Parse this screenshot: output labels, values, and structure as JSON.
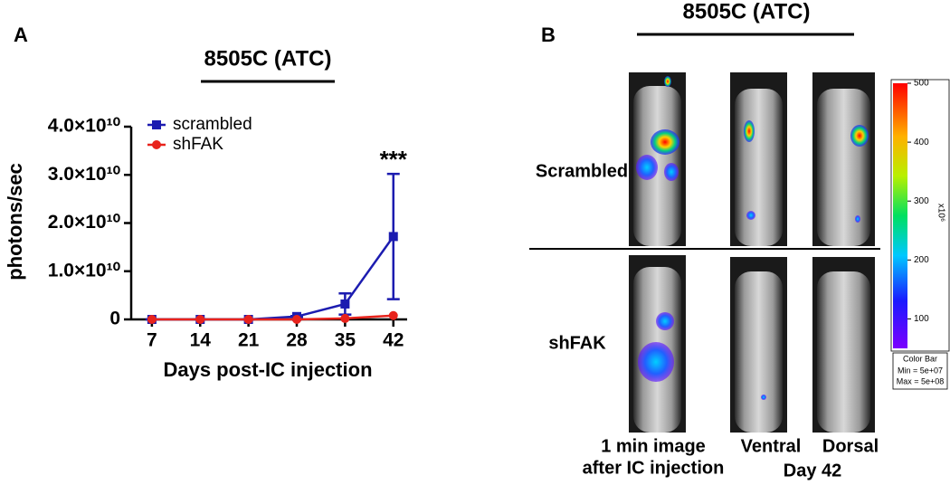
{
  "chart_data": {
    "type": "line",
    "panel_label": "A",
    "title": "8505C (ATC)",
    "x_label": "Days post-IC injection",
    "y_label": "photons/sec",
    "x": [
      7,
      14,
      21,
      28,
      35,
      42
    ],
    "series": [
      {
        "name": "scrambled",
        "color": "#1c1cb0",
        "marker": "square",
        "values": [
          0,
          0,
          0,
          600000000,
          3200000000,
          17200000000
        ],
        "errors": [
          0,
          0,
          0,
          100000000,
          2200000000,
          13000000000
        ]
      },
      {
        "name": "shFAK",
        "color": "#e8231c",
        "marker": "circle",
        "values": [
          0,
          0,
          0,
          0,
          200000000,
          800000000
        ]
      }
    ],
    "xlim": [
      4,
      44
    ],
    "xticks": [
      7,
      14,
      21,
      28,
      35,
      42
    ],
    "ylim": [
      0,
      40000000000
    ],
    "yticks": [
      0,
      {
        "value": 10000000000,
        "label": "1.0×10¹⁰"
      },
      {
        "value": 20000000000,
        "label": "2.0×10¹⁰"
      },
      {
        "value": 30000000000,
        "label": "3.0×10¹⁰"
      },
      {
        "value": 40000000000,
        "label": "4.0×10¹⁰"
      }
    ],
    "annotation": "***",
    "legend": "upper-left"
  },
  "panel_b": {
    "panel_label": "B",
    "title": "8505C (ATC)",
    "rows": [
      "Scrambled",
      "shFAK"
    ],
    "caption_lines": [
      "1 min image",
      "after IC injection"
    ],
    "views": [
      "Ventral",
      "Dorsal"
    ],
    "day": "Day 42",
    "colorbar": {
      "range": [
        50,
        500
      ],
      "ticks": [
        100,
        200,
        300,
        400,
        500
      ],
      "unit": "x10⁶",
      "box": [
        "Color Bar",
        "Min = 5e+07",
        "Max = 5e+08"
      ]
    }
  }
}
